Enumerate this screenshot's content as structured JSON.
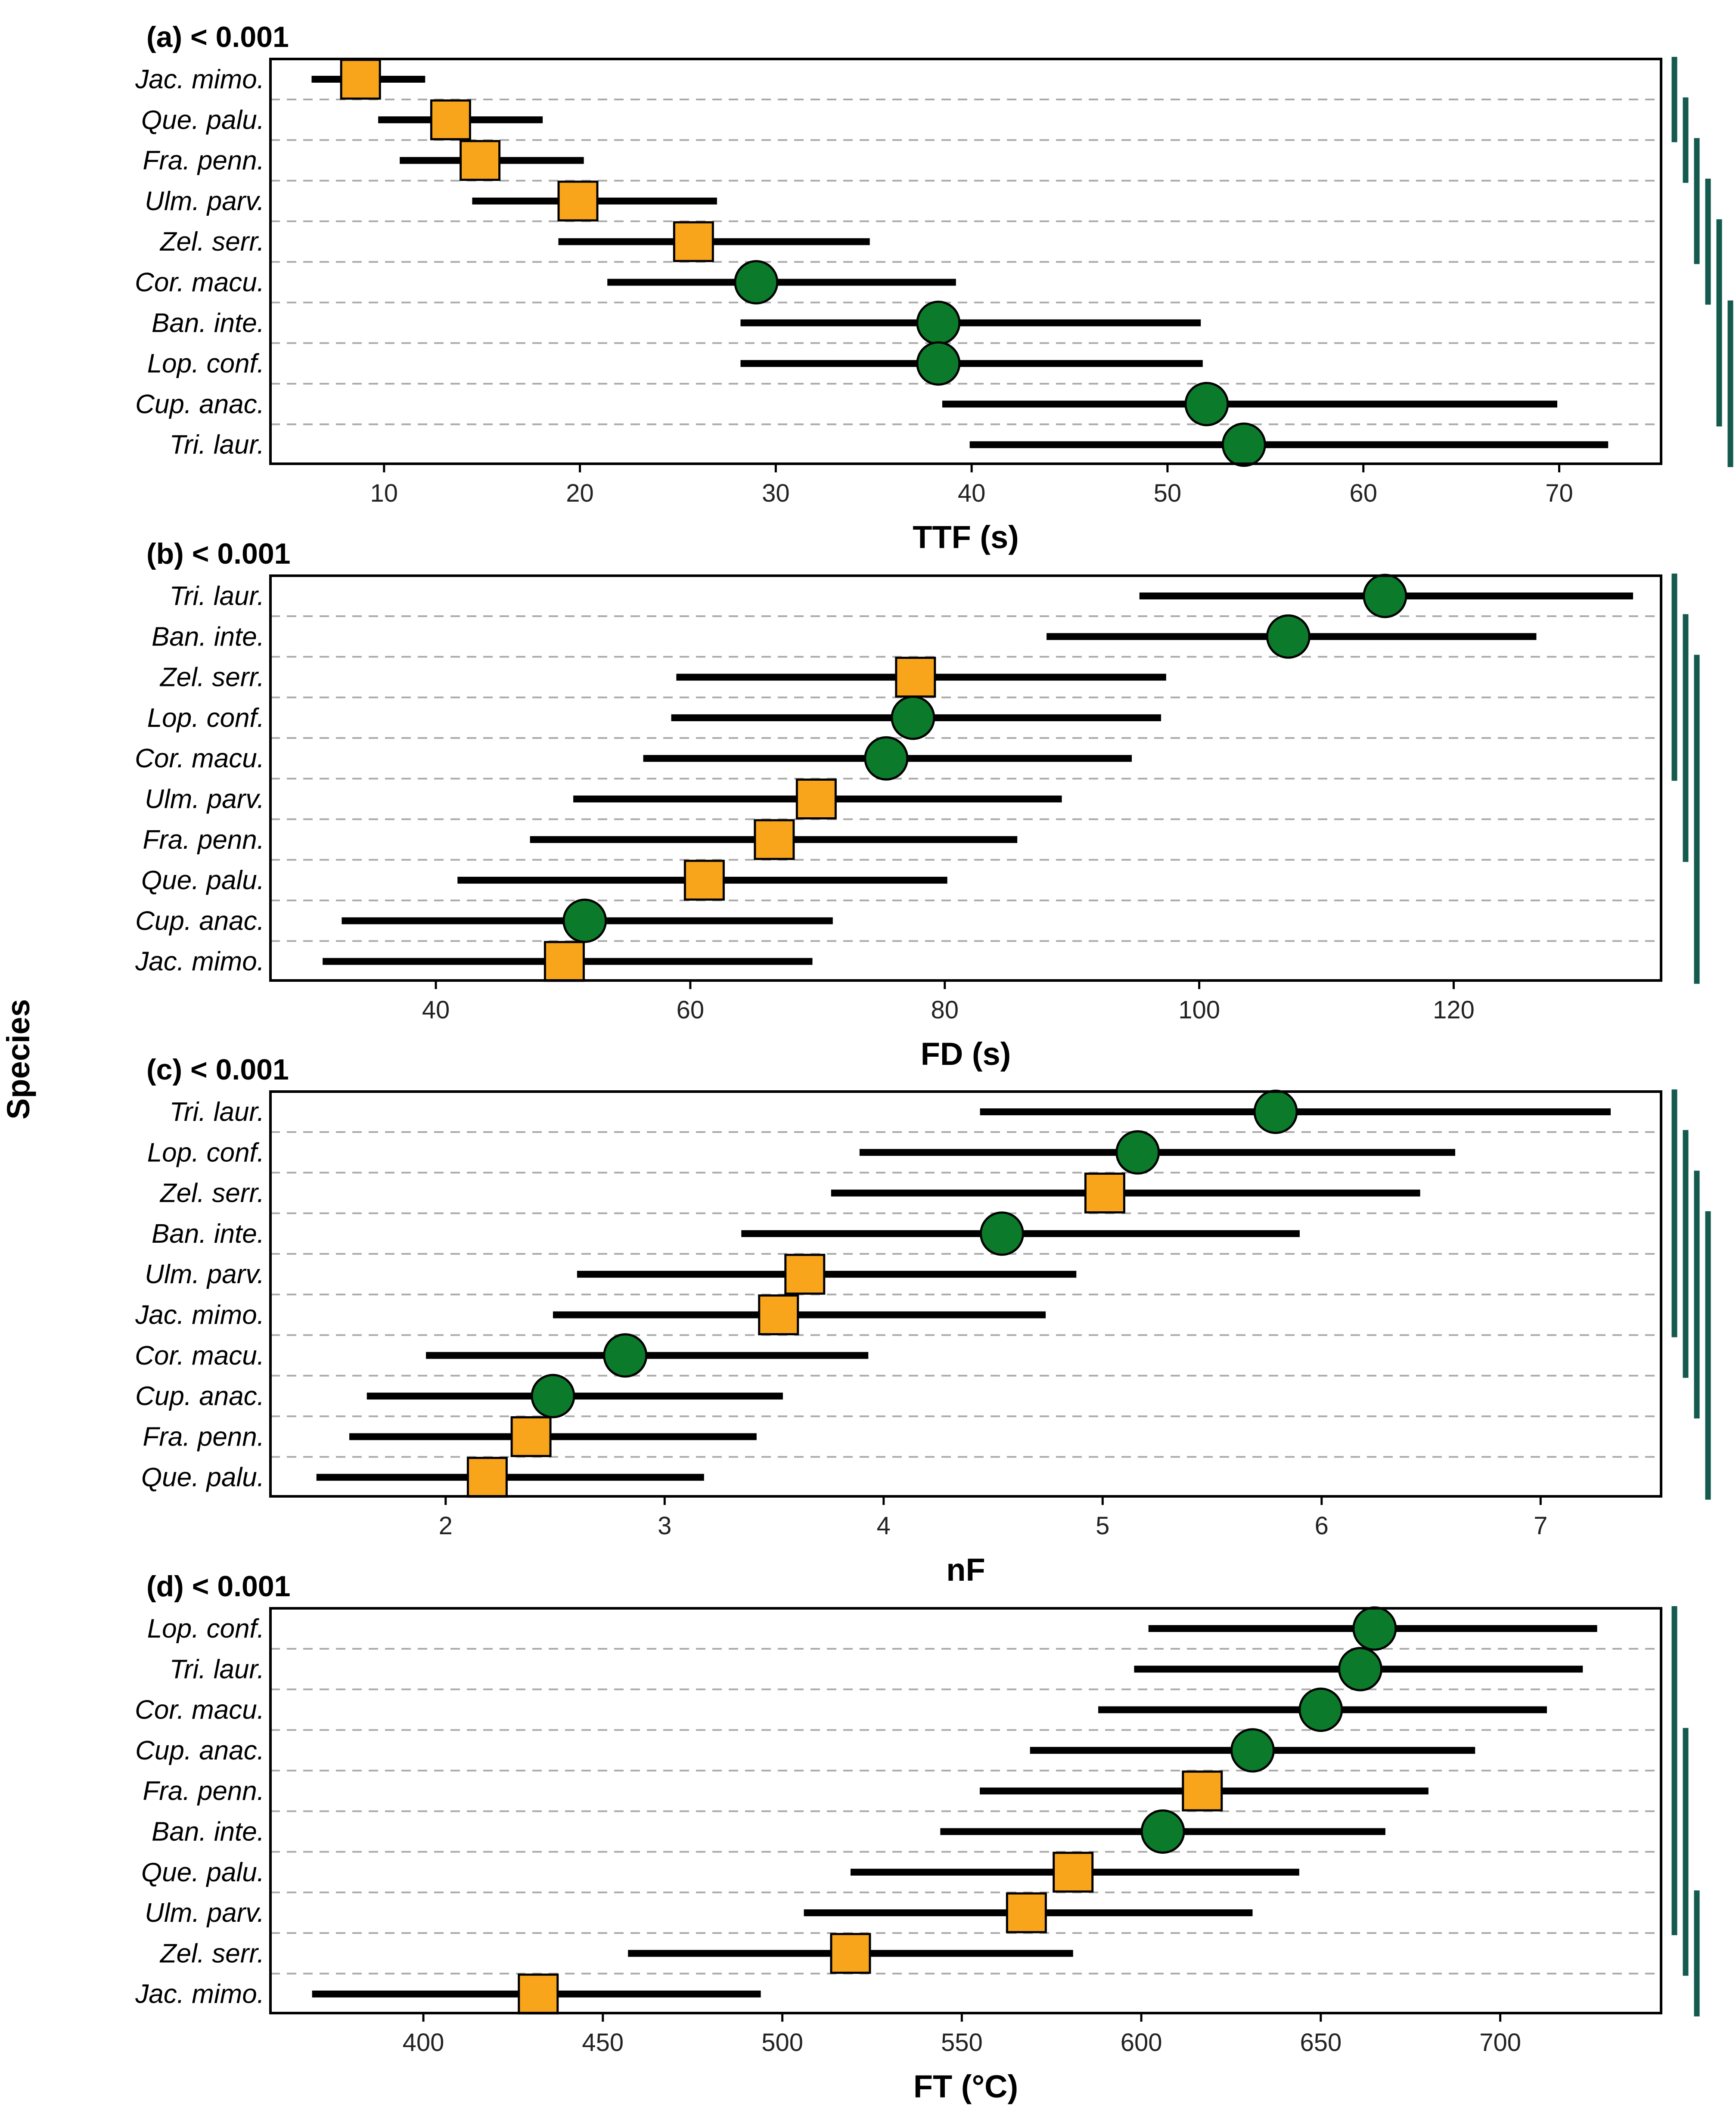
{
  "y_axis_title": "Species",
  "colors": {
    "group_circle": "#0b7a2a",
    "group_square": "#f9a51c",
    "bracket": "#145a4e",
    "gridline": "#aaaaaa",
    "ci_line": "#000000"
  },
  "chart_data": [
    {
      "type": "scatter",
      "panel_title": "(a) < 0.001",
      "xlabel": "TTF (s)",
      "xlim": [
        4.2,
        75.2
      ],
      "xticks": [
        10,
        20,
        30,
        40,
        50,
        60,
        70
      ],
      "grid": "horizontal dashed",
      "rows": [
        {
          "species": "Jac. mimo.",
          "marker": "square",
          "value": 8.8,
          "low": 6.3,
          "high": 12.1
        },
        {
          "species": "Que. palu.",
          "marker": "square",
          "value": 13.4,
          "low": 9.7,
          "high": 18.1
        },
        {
          "species": "Fra. penn.",
          "marker": "square",
          "value": 14.9,
          "low": 10.8,
          "high": 20.2
        },
        {
          "species": "Ulm. parv.",
          "marker": "square",
          "value": 19.9,
          "low": 14.5,
          "high": 27.0
        },
        {
          "species": "Zel. serr.",
          "marker": "square",
          "value": 25.8,
          "low": 18.9,
          "high": 34.8
        },
        {
          "species": "Cor. macu.",
          "marker": "circle",
          "value": 29.0,
          "low": 21.4,
          "high": 39.2
        },
        {
          "species": "Ban. inte.",
          "marker": "circle",
          "value": 38.3,
          "low": 28.2,
          "high": 51.7
        },
        {
          "species": "Lop. conf.",
          "marker": "circle",
          "value": 38.3,
          "low": 28.2,
          "high": 51.8
        },
        {
          "species": "Cup. anac.",
          "marker": "circle",
          "value": 52.0,
          "low": 38.5,
          "high": 69.9
        },
        {
          "species": "Tri. laur.",
          "marker": "circle",
          "value": 53.9,
          "low": 39.9,
          "high": 72.5
        }
      ],
      "brackets": [
        [
          0,
          1
        ],
        [
          1,
          2
        ],
        [
          2,
          4
        ],
        [
          3,
          5
        ],
        [
          4,
          8
        ],
        [
          6,
          9
        ]
      ]
    },
    {
      "type": "scatter",
      "panel_title": "(b) < 0.001",
      "xlabel": "FD (s)",
      "xlim": [
        27.0,
        136.3
      ],
      "xticks": [
        40,
        60,
        80,
        100,
        120
      ],
      "grid": "horizontal dashed",
      "rows": [
        {
          "species": "Tri. laur.",
          "marker": "circle",
          "value": 114.6,
          "low": 95.3,
          "high": 134.1
        },
        {
          "species": "Ban. inte.",
          "marker": "circle",
          "value": 107.0,
          "low": 88.0,
          "high": 126.5
        },
        {
          "species": "Zel. serr.",
          "marker": "square",
          "value": 77.7,
          "low": 58.9,
          "high": 97.4
        },
        {
          "species": "Lop. conf.",
          "marker": "circle",
          "value": 77.5,
          "low": 58.5,
          "high": 97.0
        },
        {
          "species": "Cor. macu.",
          "marker": "circle",
          "value": 75.4,
          "low": 56.3,
          "high": 94.7
        },
        {
          "species": "Ulm. parv.",
          "marker": "square",
          "value": 69.9,
          "low": 50.8,
          "high": 89.2
        },
        {
          "species": "Fra. penn.",
          "marker": "square",
          "value": 66.6,
          "low": 47.4,
          "high": 85.7
        },
        {
          "species": "Que. palu.",
          "marker": "square",
          "value": 61.1,
          "low": 41.7,
          "high": 80.2
        },
        {
          "species": "Cup. anac.",
          "marker": "circle",
          "value": 51.7,
          "low": 32.6,
          "high": 71.2
        },
        {
          "species": "Jac. mimo.",
          "marker": "square",
          "value": 50.1,
          "low": 31.1,
          "high": 69.6
        }
      ],
      "brackets": [
        [
          0,
          4
        ],
        [
          1,
          6
        ],
        [
          2,
          9
        ]
      ]
    },
    {
      "type": "scatter",
      "panel_title": "(c) < 0.001",
      "xlabel": "nF",
      "xlim": [
        1.2,
        7.55
      ],
      "xticks": [
        2,
        3,
        4,
        5,
        6,
        7
      ],
      "grid": "horizontal dashed",
      "rows": [
        {
          "species": "Tri. laur.",
          "marker": "circle",
          "value": 5.79,
          "low": 4.44,
          "high": 7.32
        },
        {
          "species": "Lop. conf.",
          "marker": "circle",
          "value": 5.16,
          "low": 3.89,
          "high": 6.61
        },
        {
          "species": "Zel. serr.",
          "marker": "square",
          "value": 5.01,
          "low": 3.76,
          "high": 6.45
        },
        {
          "species": "Ban. inte.",
          "marker": "circle",
          "value": 4.54,
          "low": 3.35,
          "high": 5.9
        },
        {
          "species": "Ulm. parv.",
          "marker": "square",
          "value": 3.64,
          "low": 2.6,
          "high": 4.88
        },
        {
          "species": "Jac. mimo.",
          "marker": "square",
          "value": 3.52,
          "low": 2.49,
          "high": 4.74
        },
        {
          "species": "Cor. macu.",
          "marker": "circle",
          "value": 2.82,
          "low": 1.91,
          "high": 3.93
        },
        {
          "species": "Cup. anac.",
          "marker": "circle",
          "value": 2.49,
          "low": 1.64,
          "high": 3.54
        },
        {
          "species": "Fra. penn.",
          "marker": "square",
          "value": 2.39,
          "low": 1.56,
          "high": 3.42
        },
        {
          "species": "Que. palu.",
          "marker": "square",
          "value": 2.19,
          "low": 1.41,
          "high": 3.18
        }
      ],
      "brackets": [
        [
          0,
          5
        ],
        [
          1,
          6
        ],
        [
          2,
          7
        ],
        [
          3,
          9
        ]
      ]
    },
    {
      "type": "scatter",
      "panel_title": "(d) < 0.001",
      "xlabel": "FT (°C)",
      "xlim": [
        357.4,
        744.8
      ],
      "xticks": [
        400,
        450,
        500,
        550,
        600,
        650,
        700
      ],
      "grid": "horizontal dashed",
      "rows": [
        {
          "species": "Lop. conf.",
          "marker": "circle",
          "value": 665,
          "low": 602,
          "high": 727
        },
        {
          "species": "Tri. laur.",
          "marker": "circle",
          "value": 661,
          "low": 598,
          "high": 723
        },
        {
          "species": "Cor. macu.",
          "marker": "circle",
          "value": 650,
          "low": 588,
          "high": 713
        },
        {
          "species": "Cup. anac.",
          "marker": "circle",
          "value": 631,
          "low": 569,
          "high": 693
        },
        {
          "species": "Fra. penn.",
          "marker": "square",
          "value": 617,
          "low": 555,
          "high": 680
        },
        {
          "species": "Ban. inte.",
          "marker": "circle",
          "value": 606,
          "low": 544,
          "high": 668
        },
        {
          "species": "Que. palu.",
          "marker": "square",
          "value": 581,
          "low": 519,
          "high": 644
        },
        {
          "species": "Ulm. parv.",
          "marker": "square",
          "value": 568,
          "low": 506,
          "high": 631
        },
        {
          "species": "Zel. serr.",
          "marker": "square",
          "value": 519,
          "low": 457,
          "high": 581
        },
        {
          "species": "Jac. mimo.",
          "marker": "square",
          "value": 432,
          "low": 369,
          "high": 494
        }
      ],
      "brackets": [
        [
          0,
          7
        ],
        [
          3,
          8
        ],
        [
          7,
          9
        ]
      ]
    }
  ]
}
